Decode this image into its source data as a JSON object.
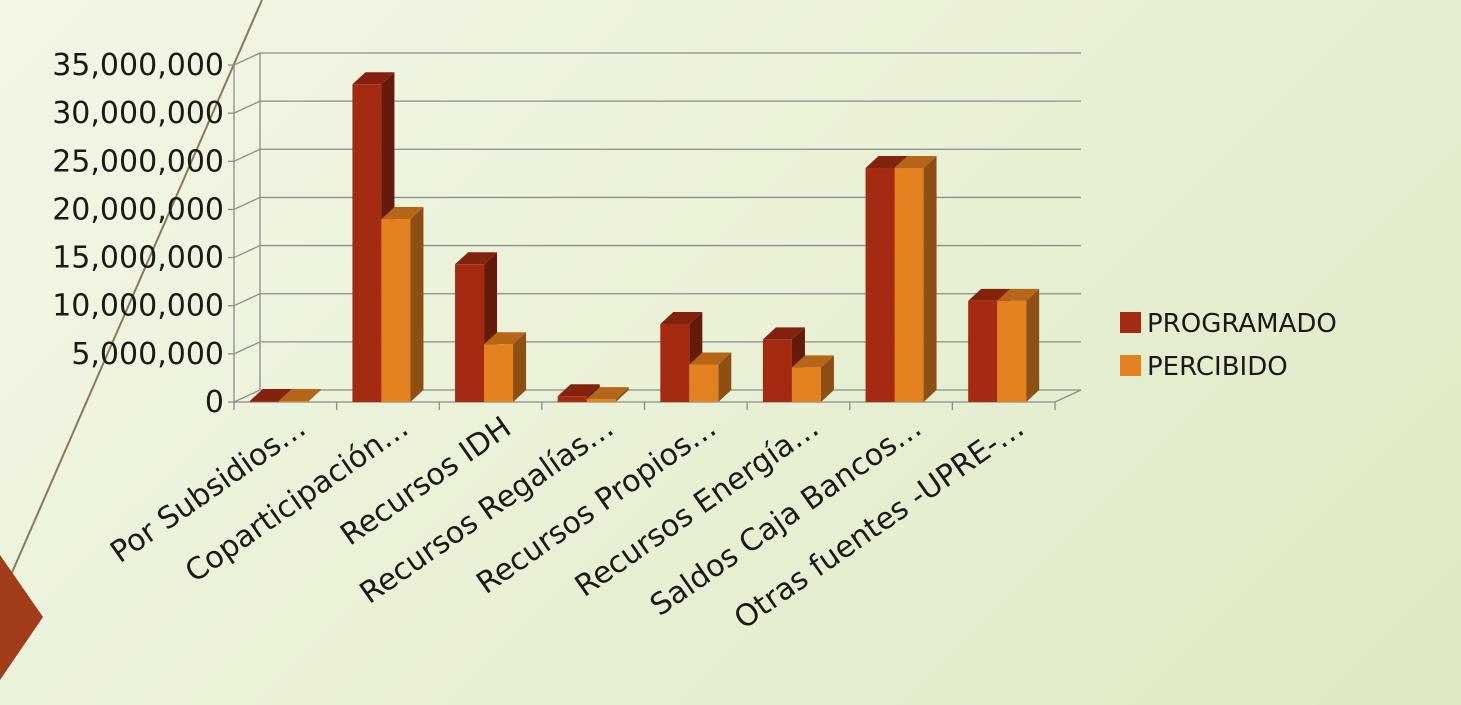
{
  "colors": {
    "programado": "#a52a12",
    "percibido": "#e3801f",
    "slide_accent": "#a23c1b"
  },
  "chart_data": {
    "type": "bar",
    "categories": [
      "Por Subsidios…",
      "Coparticipación…",
      "Recursos IDH",
      "Recursos Regalías…",
      "Recursos Propios…",
      "Recursos Energía…",
      "Saldos Caja Bancos…",
      "Otras fuentes -UPRE-…"
    ],
    "series": [
      {
        "name": "PROGRAMADO",
        "values": [
          100000,
          33000000,
          14300000,
          600000,
          8100000,
          6500000,
          24300000,
          10500000
        ]
      },
      {
        "name": "PERCIBIDO",
        "values": [
          100000,
          19000000,
          6000000,
          300000,
          3900000,
          3600000,
          24300000,
          10500000
        ]
      }
    ],
    "ylim": [
      0,
      35000000
    ],
    "ytick_labels": [
      "0",
      "5,000,000",
      "10,000,000",
      "15,000,000",
      "20,000,000",
      "25,000,000",
      "30,000,000",
      "35,000,000"
    ],
    "grid": true,
    "legend_position": "right"
  }
}
